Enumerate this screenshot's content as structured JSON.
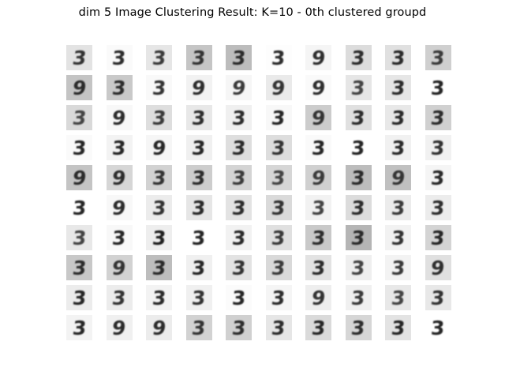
{
  "figure": {
    "title": "dim 5 Image Clustering Result: K=10 - 0th clustered groupd"
  },
  "grid": {
    "rows": 10,
    "cols": 10,
    "tiles": [
      [
        {
          "glyph": "3",
          "bg": "#e3e3e3",
          "ink": "#333333",
          "skew": -8
        },
        {
          "glyph": "3",
          "bg": "#fafafa",
          "ink": "#2c2c2c",
          "skew": -5
        },
        {
          "glyph": "3",
          "bg": "#e6e6e6",
          "ink": "#3a3a3a",
          "skew": -6
        },
        {
          "glyph": "3",
          "bg": "#c5c5c5",
          "ink": "#333333",
          "skew": -7
        },
        {
          "glyph": "3",
          "bg": "#bcbcbc",
          "ink": "#2a2a2a",
          "skew": -6
        },
        {
          "glyph": "3",
          "bg": "#fdfdfd",
          "ink": "#2e2e2e",
          "skew": -4
        },
        {
          "glyph": "9",
          "bg": "#f5f5f5",
          "ink": "#2e2e2e",
          "skew": -6
        },
        {
          "glyph": "3",
          "bg": "#dcdcdc",
          "ink": "#2c2c2c",
          "skew": -6
        },
        {
          "glyph": "3",
          "bg": "#e0e0e0",
          "ink": "#2a2a2a",
          "skew": -5
        },
        {
          "glyph": "3",
          "bg": "#cfcfcf",
          "ink": "#3a3a3a",
          "skew": -6
        }
      ],
      [
        {
          "glyph": "9",
          "bg": "#c4c4c4",
          "ink": "#2a2a2a",
          "skew": -8
        },
        {
          "glyph": "3",
          "bg": "#c9c9c9",
          "ink": "#2c2c2c",
          "skew": -6
        },
        {
          "glyph": "3",
          "bg": "#f9f9f9",
          "ink": "#333333",
          "skew": -5
        },
        {
          "glyph": "9",
          "bg": "#f2f2f2",
          "ink": "#2c2c2c",
          "skew": -7
        },
        {
          "glyph": "9",
          "bg": "#f6f6f6",
          "ink": "#3a3a3a",
          "skew": -8
        },
        {
          "glyph": "9",
          "bg": "#eaeaea",
          "ink": "#333333",
          "skew": -6
        },
        {
          "glyph": "9",
          "bg": "#fafafa",
          "ink": "#2e2e2e",
          "skew": -6
        },
        {
          "glyph": "3",
          "bg": "#e6e6e6",
          "ink": "#444444",
          "skew": -6
        },
        {
          "glyph": "3",
          "bg": "#e6e6e6",
          "ink": "#2c2c2c",
          "skew": -6
        },
        {
          "glyph": "3",
          "bg": "#ffffff",
          "ink": "#262626",
          "skew": -4
        }
      ],
      [
        {
          "glyph": "3",
          "bg": "#d9d9d9",
          "ink": "#444444",
          "skew": -8
        },
        {
          "glyph": "9",
          "bg": "#f8f8f8",
          "ink": "#2c2c2c",
          "skew": -6
        },
        {
          "glyph": "3",
          "bg": "#dedede",
          "ink": "#3a3a3a",
          "skew": -7
        },
        {
          "glyph": "3",
          "bg": "#e8e8e8",
          "ink": "#2e2e2e",
          "skew": -5
        },
        {
          "glyph": "3",
          "bg": "#f0f0f0",
          "ink": "#2c2c2c",
          "skew": -5
        },
        {
          "glyph": "3",
          "bg": "#f8f8f8",
          "ink": "#262626",
          "skew": -6
        },
        {
          "glyph": "9",
          "bg": "#cccccc",
          "ink": "#333333",
          "skew": -6
        },
        {
          "glyph": "3",
          "bg": "#e0e0e0",
          "ink": "#2c2c2c",
          "skew": -6
        },
        {
          "glyph": "3",
          "bg": "#e8e8e8",
          "ink": "#2a2a2a",
          "skew": -6
        },
        {
          "glyph": "3",
          "bg": "#d0d0d0",
          "ink": "#2c2c2c",
          "skew": -7
        }
      ],
      [
        {
          "glyph": "3",
          "bg": "#fafafa",
          "ink": "#262626",
          "skew": -5
        },
        {
          "glyph": "3",
          "bg": "#f3f3f3",
          "ink": "#262626",
          "skew": -5
        },
        {
          "glyph": "9",
          "bg": "#f6f6f6",
          "ink": "#262626",
          "skew": -6
        },
        {
          "glyph": "3",
          "bg": "#f0f0f0",
          "ink": "#262626",
          "skew": -5
        },
        {
          "glyph": "3",
          "bg": "#dedede",
          "ink": "#2a2a2a",
          "skew": -6
        },
        {
          "glyph": "3",
          "bg": "#dddddd",
          "ink": "#333333",
          "skew": -5
        },
        {
          "glyph": "3",
          "bg": "#fafafa",
          "ink": "#262626",
          "skew": -4
        },
        {
          "glyph": "3",
          "bg": "#ffffff",
          "ink": "#262626",
          "skew": -4
        },
        {
          "glyph": "3",
          "bg": "#f1f1f1",
          "ink": "#2a2a2a",
          "skew": -5
        },
        {
          "glyph": "3",
          "bg": "#f1f1f1",
          "ink": "#333333",
          "skew": -5
        }
      ],
      [
        {
          "glyph": "9",
          "bg": "#c4c4c4",
          "ink": "#2a2a2a",
          "skew": -8
        },
        {
          "glyph": "9",
          "bg": "#d6d6d6",
          "ink": "#2c2c2c",
          "skew": -7
        },
        {
          "glyph": "3",
          "bg": "#d2d2d2",
          "ink": "#333333",
          "skew": -6
        },
        {
          "glyph": "3",
          "bg": "#cdcdcd",
          "ink": "#2c2c2c",
          "skew": -6
        },
        {
          "glyph": "3",
          "bg": "#d4d4d4",
          "ink": "#3a3a3a",
          "skew": -6
        },
        {
          "glyph": "3",
          "bg": "#d6d6d6",
          "ink": "#444444",
          "skew": -6
        },
        {
          "glyph": "9",
          "bg": "#d0d0d0",
          "ink": "#3a3a3a",
          "skew": -7
        },
        {
          "glyph": "3",
          "bg": "#bcbcbc",
          "ink": "#2a2a2a",
          "skew": -6
        },
        {
          "glyph": "9",
          "bg": "#c0c0c0",
          "ink": "#333333",
          "skew": -7
        },
        {
          "glyph": "3",
          "bg": "#f5f5f5",
          "ink": "#2a2a2a",
          "skew": -5
        }
      ],
      [
        {
          "glyph": "3",
          "bg": "#ffffff",
          "ink": "#262626",
          "skew": -5
        },
        {
          "glyph": "9",
          "bg": "#f8f8f8",
          "ink": "#2c2c2c",
          "skew": -7
        },
        {
          "glyph": "3",
          "bg": "#ececec",
          "ink": "#333333",
          "skew": -5
        },
        {
          "glyph": "3",
          "bg": "#e6e6e6",
          "ink": "#2a2a2a",
          "skew": -5
        },
        {
          "glyph": "3",
          "bg": "#e3e3e3",
          "ink": "#2c2c2c",
          "skew": -6
        },
        {
          "glyph": "3",
          "bg": "#dadada",
          "ink": "#333333",
          "skew": -6
        },
        {
          "glyph": "3",
          "bg": "#f2f2f2",
          "ink": "#444444",
          "skew": -5
        },
        {
          "glyph": "3",
          "bg": "#dcdcdc",
          "ink": "#2c2c2c",
          "skew": -6
        },
        {
          "glyph": "3",
          "bg": "#ececec",
          "ink": "#3a3a3a",
          "skew": -5
        },
        {
          "glyph": "3",
          "bg": "#ececec",
          "ink": "#2e2e2e",
          "skew": -5
        }
      ],
      [
        {
          "glyph": "3",
          "bg": "#e8e8e8",
          "ink": "#444444",
          "skew": -6
        },
        {
          "glyph": "3",
          "bg": "#f8f8f8",
          "ink": "#262626",
          "skew": -5
        },
        {
          "glyph": "3",
          "bg": "#eeeeee",
          "ink": "#1f1f1f",
          "skew": -5
        },
        {
          "glyph": "3",
          "bg": "#ffffff",
          "ink": "#262626",
          "skew": -4
        },
        {
          "glyph": "3",
          "bg": "#f2f2f2",
          "ink": "#2a2a2a",
          "skew": -5
        },
        {
          "glyph": "3",
          "bg": "#e0e0e0",
          "ink": "#3a3a3a",
          "skew": -6
        },
        {
          "glyph": "3",
          "bg": "#c9c9c9",
          "ink": "#2c2c2c",
          "skew": -6
        },
        {
          "glyph": "3",
          "bg": "#b5b5b5",
          "ink": "#2a2a2a",
          "skew": -7
        },
        {
          "glyph": "3",
          "bg": "#f2f2f2",
          "ink": "#333333",
          "skew": -5
        },
        {
          "glyph": "3",
          "bg": "#d4d4d4",
          "ink": "#262626",
          "skew": -6
        }
      ],
      [
        {
          "glyph": "3",
          "bg": "#c8c8c8",
          "ink": "#2c2c2c",
          "skew": -7
        },
        {
          "glyph": "9",
          "bg": "#d2d2d2",
          "ink": "#333333",
          "skew": -7
        },
        {
          "glyph": "3",
          "bg": "#bdbdbd",
          "ink": "#2a2a2a",
          "skew": -7
        },
        {
          "glyph": "3",
          "bg": "#f0f0f0",
          "ink": "#262626",
          "skew": -5
        },
        {
          "glyph": "3",
          "bg": "#e3e3e3",
          "ink": "#333333",
          "skew": -6
        },
        {
          "glyph": "3",
          "bg": "#d9d9d9",
          "ink": "#3a3a3a",
          "skew": -6
        },
        {
          "glyph": "3",
          "bg": "#e3e3e3",
          "ink": "#2c2c2c",
          "skew": -6
        },
        {
          "glyph": "3",
          "bg": "#efefef",
          "ink": "#444444",
          "skew": -5
        },
        {
          "glyph": "3",
          "bg": "#f3f3f3",
          "ink": "#3a3a3a",
          "skew": -5
        },
        {
          "glyph": "9",
          "bg": "#e0e0e0",
          "ink": "#2e2e2e",
          "skew": -6
        }
      ],
      [
        {
          "glyph": "3",
          "bg": "#ececec",
          "ink": "#262626",
          "skew": -6
        },
        {
          "glyph": "3",
          "bg": "#ececec",
          "ink": "#333333",
          "skew": -6
        },
        {
          "glyph": "3",
          "bg": "#f3f3f3",
          "ink": "#2a2a2a",
          "skew": -5
        },
        {
          "glyph": "3",
          "bg": "#f0f0f0",
          "ink": "#333333",
          "skew": -5
        },
        {
          "glyph": "3",
          "bg": "#fbfbfb",
          "ink": "#262626",
          "skew": -4
        },
        {
          "glyph": "3",
          "bg": "#f5f5f5",
          "ink": "#2c2c2c",
          "skew": -6
        },
        {
          "glyph": "9",
          "bg": "#eeeeee",
          "ink": "#333333",
          "skew": -7
        },
        {
          "glyph": "3",
          "bg": "#f0f0f0",
          "ink": "#3a3a3a",
          "skew": -5
        },
        {
          "glyph": "3",
          "bg": "#e8e8e8",
          "ink": "#444444",
          "skew": -6
        },
        {
          "glyph": "3",
          "bg": "#e8e8e8",
          "ink": "#333333",
          "skew": -6
        }
      ],
      [
        {
          "glyph": "3",
          "bg": "#f3f3f3",
          "ink": "#262626",
          "skew": -6
        },
        {
          "glyph": "9",
          "bg": "#f0f0f0",
          "ink": "#2a2a2a",
          "skew": -7
        },
        {
          "glyph": "9",
          "bg": "#ececec",
          "ink": "#2a2a2a",
          "skew": -7
        },
        {
          "glyph": "3",
          "bg": "#d2d2d2",
          "ink": "#333333",
          "skew": -6
        },
        {
          "glyph": "3",
          "bg": "#d0d0d0",
          "ink": "#2c2c2c",
          "skew": -6
        },
        {
          "glyph": "3",
          "bg": "#e6e6e6",
          "ink": "#2c2c2c",
          "skew": -6
        },
        {
          "glyph": "3",
          "bg": "#dadada",
          "ink": "#262626",
          "skew": -6
        },
        {
          "glyph": "3",
          "bg": "#d6d6d6",
          "ink": "#2c2c2c",
          "skew": -6
        },
        {
          "glyph": "3",
          "bg": "#e3e3e3",
          "ink": "#262626",
          "skew": -6
        },
        {
          "glyph": "3",
          "bg": "#ffffff",
          "ink": "#262626",
          "skew": -4
        }
      ]
    ]
  }
}
